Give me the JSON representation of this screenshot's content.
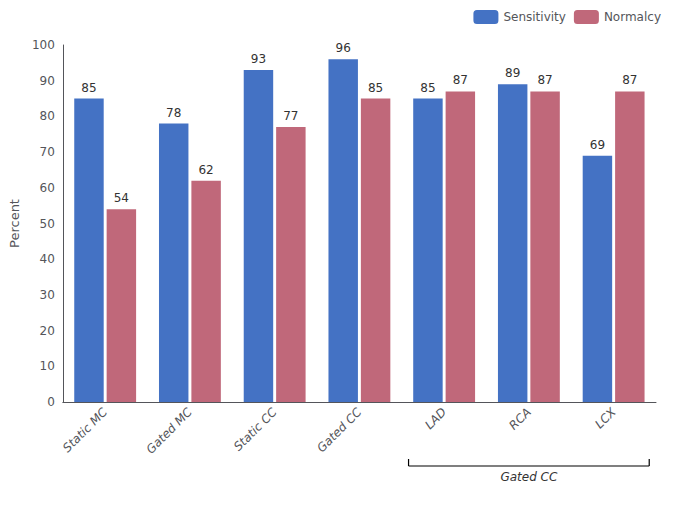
{
  "chart_data": {
    "type": "bar",
    "categories": [
      "Static MC",
      "Gated MC",
      "Static CC",
      "Gated CC",
      "LAD",
      "RCA",
      "LCX"
    ],
    "series": [
      {
        "name": "Sensitivity",
        "color": "#4472C4",
        "values": [
          85,
          78,
          93,
          96,
          85,
          89,
          69
        ]
      },
      {
        "name": "Normalcy",
        "color": "#C0687A",
        "values": [
          54,
          62,
          77,
          85,
          87,
          87,
          87
        ]
      }
    ],
    "ylabel": "Percent",
    "ylim": [
      0,
      100
    ],
    "yticks": [
      0,
      10,
      20,
      30,
      40,
      50,
      60,
      70,
      80,
      90,
      100
    ],
    "grid": false,
    "legend": "upper right",
    "data_labels": true,
    "annotations": [
      {
        "text": "Gated CC",
        "categories": [
          "LAD",
          "RCA",
          "LCX"
        ]
      }
    ]
  }
}
